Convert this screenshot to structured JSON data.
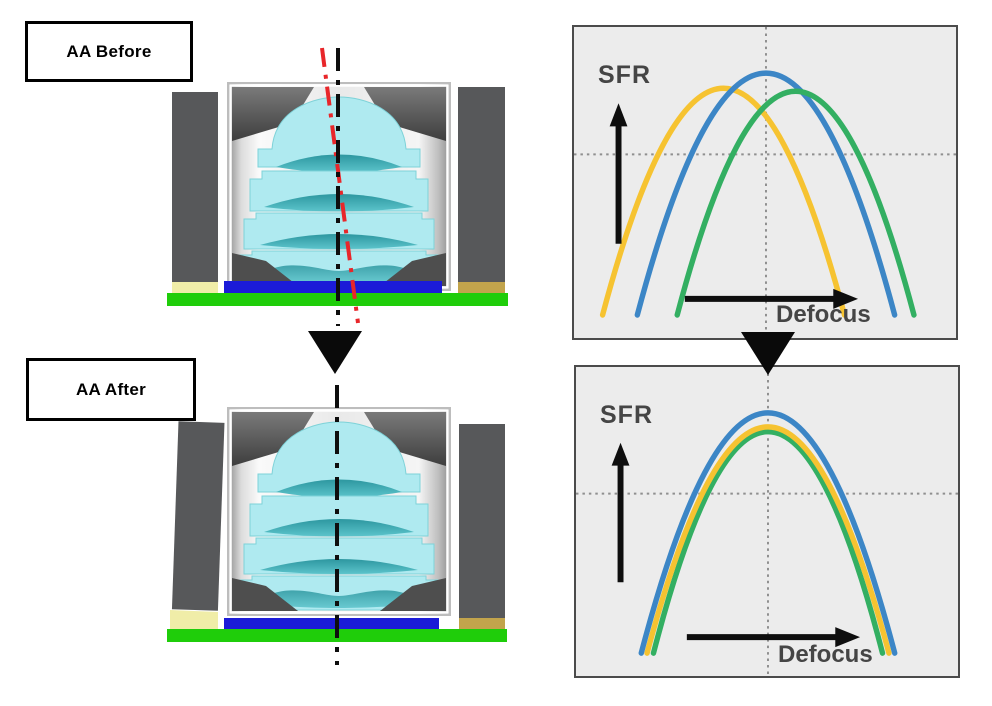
{
  "figure": {
    "before_label": "AA Before",
    "after_label": "AA After"
  },
  "module": {
    "description_parts": [
      "lens-barrel",
      "lens-elements",
      "housing-pillars",
      "image-sensor",
      "pcb",
      "adhesive"
    ],
    "colors": {
      "housing": "#57585A",
      "lens": "#AFEAF0",
      "lens_surface": "#2F9EA6",
      "sensor": "#1B1BD8",
      "pcb": "#1FCD0A",
      "adhesive": "#F0EDA8",
      "adhesive_dark": "#C2A44C",
      "axis_black": "#0E0E0E",
      "axis_red": "#E8262A"
    }
  },
  "chart_style": {
    "panel_bg": "#ECECEC",
    "panel_border": "#4B4B4B",
    "text": "#454545",
    "gridline": "#8F8F8F"
  },
  "chart_data": [
    {
      "type": "line",
      "xlabel": "Defocus",
      "ylabel": "SFR",
      "x_axis": {
        "range": [
          -1,
          1
        ],
        "reference_line": "vertical dotted at best-focus (0)"
      },
      "y_axis": {
        "range": [
          0,
          1
        ],
        "reference_line": "horizontal dotted at mid SFR"
      },
      "legend": "none",
      "series": [
        {
          "name": "field-yellow",
          "color": "#F6C331",
          "peak_defocus": -0.33,
          "peak_sfr": 0.95,
          "half_width": 0.94
        },
        {
          "name": "center-blue",
          "color": "#3C86C6",
          "peak_defocus": 0.0,
          "peak_sfr": 1.0,
          "half_width": 1.0
        },
        {
          "name": "field-green",
          "color": "#33AF62",
          "peak_defocus": 0.23,
          "peak_sfr": 0.94,
          "half_width": 0.92
        }
      ]
    },
    {
      "type": "line",
      "xlabel": "Defocus",
      "ylabel": "SFR",
      "x_axis": {
        "range": [
          -1,
          1
        ],
        "reference_line": "vertical dotted at best-focus (0)"
      },
      "y_axis": {
        "range": [
          0,
          1
        ],
        "reference_line": "horizontal dotted at mid SFR"
      },
      "legend": "none",
      "series": [
        {
          "name": "field-green",
          "color": "#33AF62",
          "peak_defocus": 0.0,
          "peak_sfr": 0.937,
          "half_width": 0.89
        },
        {
          "name": "field-yellow",
          "color": "#F6C331",
          "peak_defocus": 0.0,
          "peak_sfr": 0.953,
          "half_width": 0.94
        },
        {
          "name": "center-blue",
          "color": "#3C86C6",
          "peak_defocus": 0.0,
          "peak_sfr": 1.0,
          "half_width": 0.985
        }
      ]
    }
  ]
}
